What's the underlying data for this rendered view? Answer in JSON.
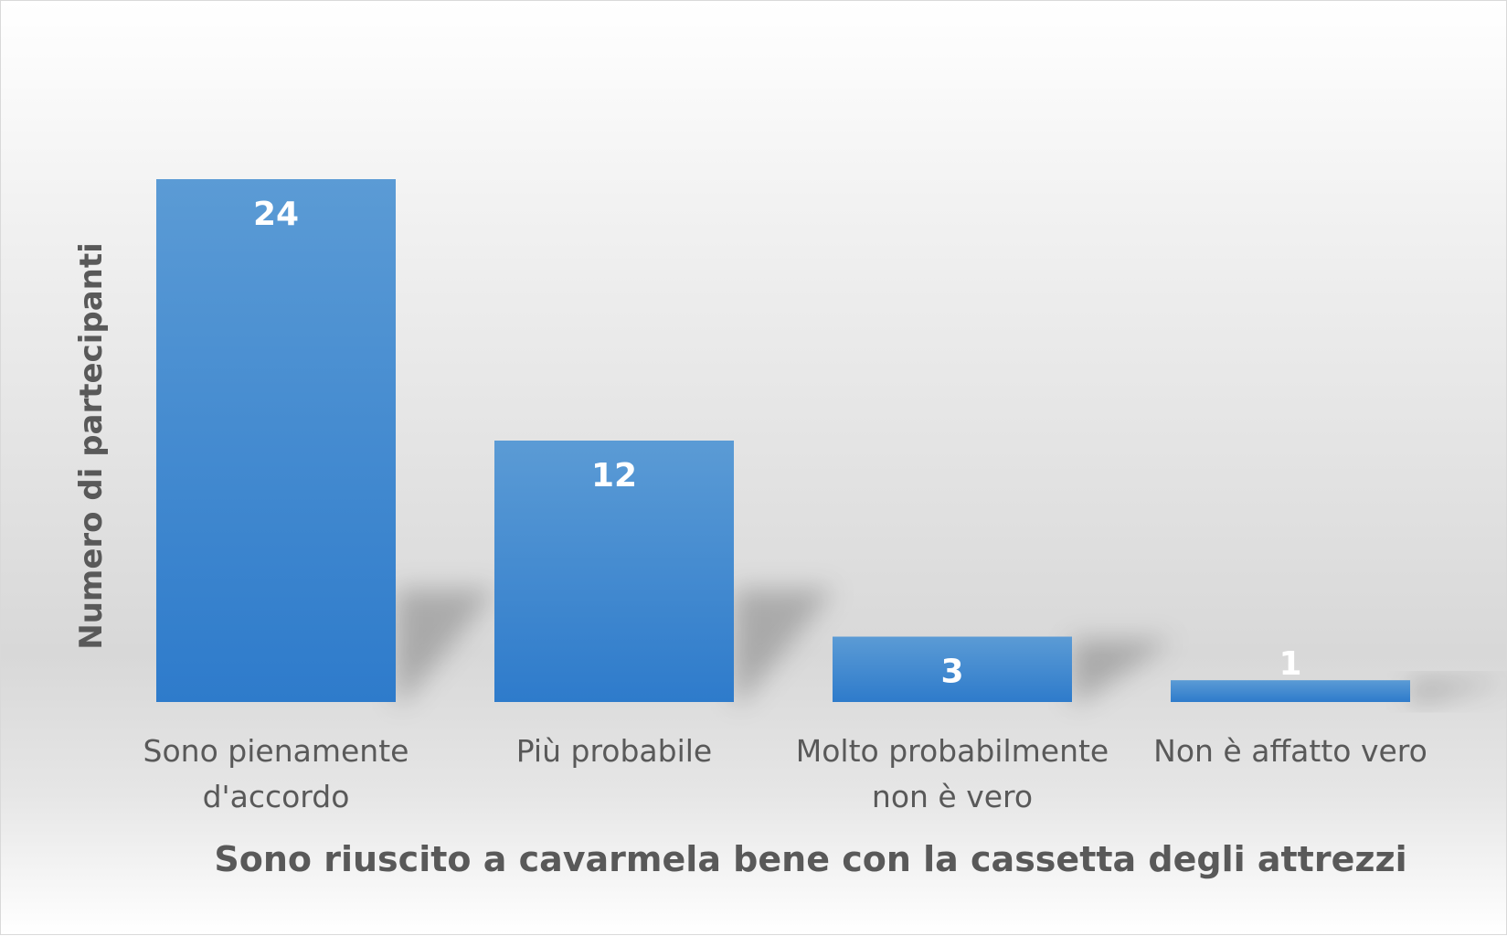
{
  "chart_data": {
    "type": "bar",
    "title": "",
    "xlabel": "Sono riuscito a cavarmela bene con la cassetta degli attrezzi",
    "ylabel": "Numero di partecipanti",
    "categories": [
      [
        "Sono pienamente",
        "d'accordo"
      ],
      [
        "Più probabile"
      ],
      [
        "Molto probabilmente",
        "non è vero"
      ],
      [
        "Non è affatto vero"
      ]
    ],
    "values": [
      24,
      12,
      3,
      1
    ],
    "ylim": [
      0,
      24
    ],
    "grid": false,
    "legend": "none",
    "data_labels": true,
    "colors": {
      "bar_top": "#5b9bd5",
      "bar_bottom": "#2e7bcb",
      "label": "#ffffff",
      "text": "#595959"
    }
  }
}
